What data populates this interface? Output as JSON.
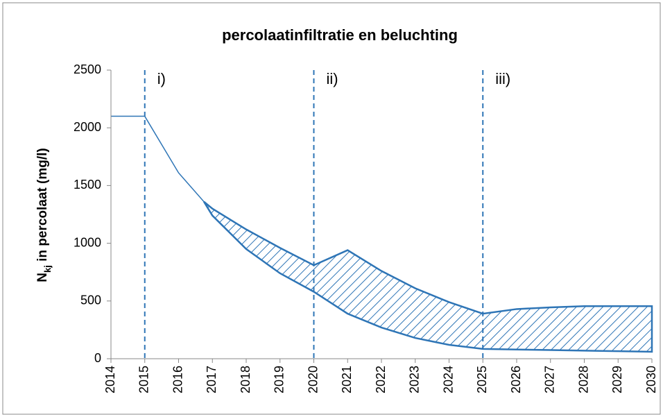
{
  "chart_data": {
    "type": "line",
    "title": "percolaatinfiltratie en beluchting",
    "ylabel": {
      "main": "N",
      "sub": "kj",
      "rest": " in percolaat (mg/l)"
    },
    "x": [
      2014,
      2015,
      2016,
      2016.75,
      2017,
      2018,
      2019,
      2020,
      2021,
      2022,
      2023,
      2024,
      2025,
      2026,
      2027,
      2028,
      2029,
      2030
    ],
    "series": [
      {
        "color": "#2e75b6",
        "values": [
          2100,
          2100,
          1610,
          1360,
          1300,
          1120,
          960,
          810,
          940,
          760,
          610,
          490,
          390,
          430,
          445,
          455,
          455,
          455
        ]
      },
      {
        "color": "#2e75b6",
        "values": [
          null,
          null,
          null,
          1360,
          1240,
          950,
          740,
          580,
          390,
          270,
          180,
          120,
          85,
          80,
          75,
          70,
          65,
          60
        ]
      }
    ],
    "hatch_between_series": true,
    "xlim": [
      2014,
      2030
    ],
    "xticks": [
      2014,
      2015,
      2016,
      2017,
      2018,
      2019,
      2020,
      2021,
      2022,
      2023,
      2024,
      2025,
      2026,
      2027,
      2028,
      2029,
      2030
    ],
    "ylim": [
      0,
      2500
    ],
    "yticks": [
      0,
      500,
      1000,
      1500,
      2000,
      2500
    ],
    "annotations": [
      {
        "x": 2015,
        "label": "i)"
      },
      {
        "x": 2020,
        "label": "ii)"
      },
      {
        "x": 2025,
        "label": "iii)"
      }
    ]
  }
}
